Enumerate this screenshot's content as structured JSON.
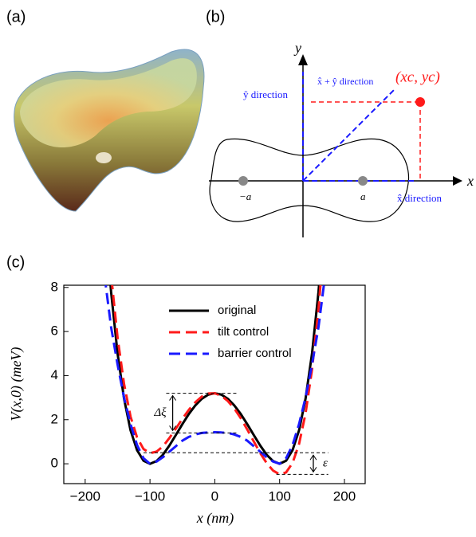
{
  "panel_labels": [
    "(a)",
    "(b)",
    "(c)"
  ],
  "diagram": {
    "x_axis": "x",
    "y_axis": "y",
    "point_label": "(xc, yc)",
    "y_direction": "ŷ direction",
    "xy_direction": "x̂ + ŷ direction",
    "x_direction": "x̂ direction",
    "minus_a": "−a",
    "a": "a"
  },
  "chart_data": {
    "type": "line",
    "x_label": "x (nm)",
    "y_label": "V(x,0) (meV)",
    "x": [
      -170,
      -160,
      -150,
      -140,
      -130,
      -120,
      -110,
      -100,
      -90,
      -80,
      -70,
      -60,
      -50,
      -40,
      -30,
      -20,
      -10,
      0,
      10,
      20,
      30,
      40,
      50,
      60,
      70,
      80,
      90,
      100,
      110,
      120,
      130,
      140,
      150,
      160,
      170
    ],
    "series": [
      {
        "name": "original",
        "color": "#000000",
        "dash": false,
        "values": [
          11.4,
          7.8,
          5.0,
          2.95,
          1.52,
          0.62,
          0.14,
          0,
          0.12,
          0.41,
          0.83,
          1.31,
          1.8,
          2.26,
          2.65,
          2.95,
          3.14,
          3.2,
          3.14,
          2.95,
          2.65,
          2.26,
          1.8,
          1.31,
          0.83,
          0.41,
          0.12,
          0,
          0.14,
          0.62,
          1.52,
          2.95,
          5.0,
          7.8,
          11.4
        ]
      },
      {
        "name": "tilt control",
        "color": "#ff1a1a",
        "dash": true,
        "values": [
          12.2,
          8.56,
          5.72,
          3.62,
          2.14,
          1.2,
          0.67,
          0.48,
          0.55,
          0.79,
          1.17,
          1.6,
          2.04,
          2.45,
          2.79,
          3.05,
          3.19,
          3.2,
          3.09,
          2.85,
          2.51,
          2.07,
          1.56,
          1.02,
          0.49,
          0.03,
          -0.31,
          -0.48,
          -0.39,
          0.04,
          0.9,
          2.28,
          4.28,
          7.02,
          10.6
        ]
      },
      {
        "name": "barrier control",
        "color": "#1a1aff",
        "dash": true,
        "values": [
          8.5,
          6.2,
          4.5,
          3.0,
          1.8,
          0.85,
          0.25,
          0,
          0.1,
          0.3,
          0.55,
          0.8,
          1.05,
          1.22,
          1.33,
          1.4,
          1.42,
          1.43,
          1.42,
          1.4,
          1.33,
          1.22,
          1.05,
          0.8,
          0.55,
          0.3,
          0.1,
          0,
          0.25,
          0.85,
          1.8,
          3.0,
          4.5,
          6.2,
          8.5
        ]
      }
    ],
    "annotations": [
      {
        "text": "Δξ",
        "from": 1.4,
        "to": 3.2
      },
      {
        "text": "ε",
        "from": -0.48,
        "to": 0.5
      }
    ],
    "xlim": [
      -233,
      232
    ],
    "ylim": [
      -0.9,
      8.1
    ],
    "xticks": [
      {
        "value": -200,
        "label": "−200"
      },
      {
        "value": -100,
        "label": "−100"
      },
      0,
      100,
      200
    ],
    "yticks": [
      0,
      2,
      4,
      6,
      8
    ]
  }
}
